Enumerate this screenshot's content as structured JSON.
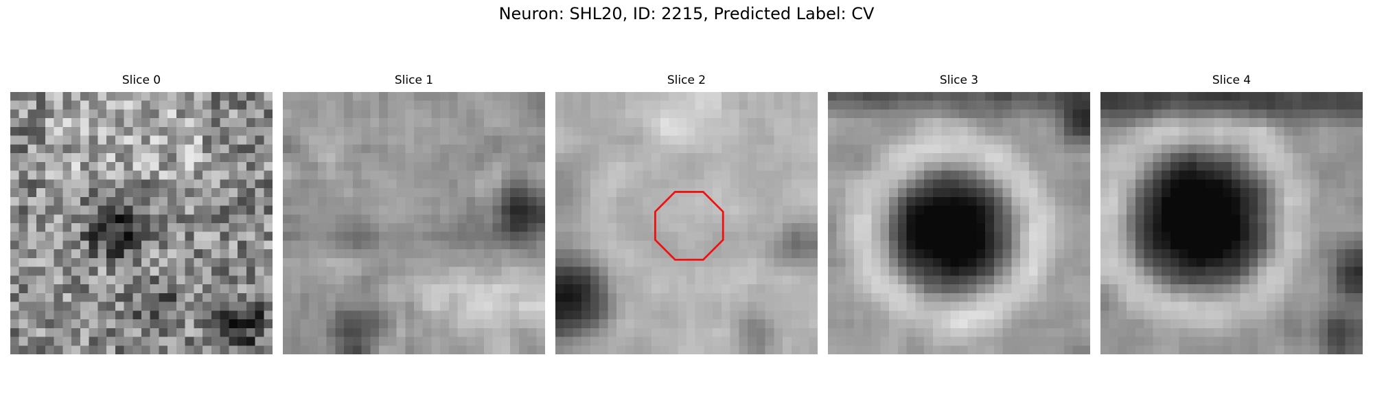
{
  "figure": {
    "title": "Neuron: SHL20, ID: 2215, Predicted Label: CV"
  },
  "panels": [
    {
      "title": "Slice 0"
    },
    {
      "title": "Slice 1"
    },
    {
      "title": "Slice 2"
    },
    {
      "title": "Slice 3"
    },
    {
      "title": "Slice 4"
    }
  ],
  "colors": {
    "marker": "#ee1111",
    "background": "#ffffff"
  },
  "marker": {
    "shape": "octagon",
    "panel_index": 2
  }
}
